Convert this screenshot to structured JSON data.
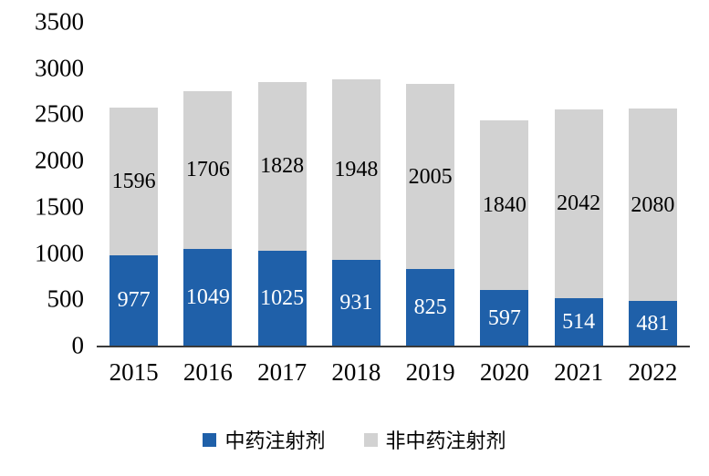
{
  "chart_data": {
    "type": "bar",
    "stacked": true,
    "title": "",
    "xlabel": "",
    "ylabel": "",
    "categories": [
      "2015",
      "2016",
      "2017",
      "2018",
      "2019",
      "2020",
      "2021",
      "2022"
    ],
    "series": [
      {
        "name": "中药注射剂",
        "color": "#1f60a9",
        "label_color": "#ffffff",
        "values": [
          977,
          1049,
          1025,
          931,
          825,
          597,
          514,
          481
        ]
      },
      {
        "name": "非中药注射剂",
        "color": "#d2d2d2",
        "label_color": "#000000",
        "values": [
          1596,
          1706,
          1828,
          1948,
          2005,
          1840,
          2042,
          2080
        ]
      }
    ],
    "totals": [
      2573,
      2755,
      2853,
      2879,
      2830,
      2437,
      2556,
      2561
    ],
    "ylim": [
      0,
      3500
    ],
    "yticks": [
      0,
      500,
      1000,
      1500,
      2000,
      2500,
      3000,
      3500
    ],
    "grid": false,
    "legend_position": "bottom",
    "data_labels": true
  },
  "legend": {
    "items": [
      {
        "label": "中药注射剂",
        "color": "#1f60a9"
      },
      {
        "label": "非中药注射剂",
        "color": "#d2d2d2"
      }
    ]
  }
}
